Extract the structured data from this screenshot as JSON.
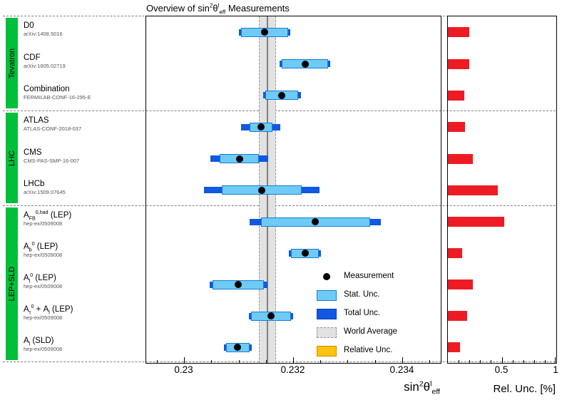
{
  "title": "Overview of sin^{2}θ^{l}_{eff} Measurements",
  "colors": {
    "group_green": "#00bf3a",
    "stat_fill": "#6ecbf5",
    "stat_border": "#1a7ad4",
    "total_fill": "#1158e2",
    "total_border": "#0b3fb0",
    "marker": "#000000",
    "rel_bar": "#ed1c24",
    "world_fill": "#e2e2e2",
    "world_edge": "#999999",
    "world_center": "#808080",
    "legend_rel_fill": "#ffc20e",
    "legend_rel_border": "#c79100",
    "ref_text": "#555555",
    "dash_line": "#808080"
  },
  "groups": [
    {
      "label": "Tevatron",
      "count": 3
    },
    {
      "label": "LHC",
      "count": 3
    },
    {
      "label": "LEP+SLD",
      "count": 5
    }
  ],
  "chart_data": {
    "type": "errorbar",
    "title": "Overview of sin2-theta-eff-l Measurements",
    "world_average": {
      "value": 0.23152,
      "uncertainty": 0.00016
    },
    "rows": [
      {
        "group": "Tevatron",
        "label": "D0",
        "ref": "arXiv:1408.5016",
        "value": 0.23147,
        "stat_unc": 0.00043,
        "total_unc": 0.00047,
        "rel_unc_pct": 0.2
      },
      {
        "group": "Tevatron",
        "label": "CDF",
        "ref": "arXiv:1605.02719",
        "value": 0.23221,
        "stat_unc": 0.00043,
        "total_unc": 0.00046,
        "rel_unc_pct": 0.2
      },
      {
        "group": "Tevatron",
        "label": "Combination",
        "ref": "FERMILAB-CONF-16-295-E",
        "value": 0.23179,
        "stat_unc": 0.0003,
        "total_unc": 0.00035,
        "rel_unc_pct": 0.15
      },
      {
        "group": "LHC",
        "label": "ATLAS",
        "ref": "ATLAS-CONF-2018-037",
        "value": 0.2314,
        "stat_unc": 0.00021,
        "total_unc": 0.00036,
        "rel_unc_pct": 0.16
      },
      {
        "group": "LHC",
        "label": "CMS",
        "ref": "CMS-PAS-SMP-16-007",
        "value": 0.23101,
        "stat_unc": 0.00036,
        "total_unc": 0.00053,
        "rel_unc_pct": 0.23
      },
      {
        "group": "LHC",
        "label": "LHCb",
        "ref": "arXiv:1509.07645",
        "value": 0.23142,
        "stat_unc": 0.00073,
        "total_unc": 0.00106,
        "rel_unc_pct": 0.46
      },
      {
        "group": "LEP+SLD",
        "label": "A_{FB}^{0,had} (LEP)",
        "ref": "hep-ex/0509008",
        "value": 0.2324,
        "stat_unc": 0.001,
        "total_unc": 0.0012,
        "rel_unc_pct": 0.52
      },
      {
        "group": "LEP+SLD",
        "label": "A_{b}^{0} (LEP)",
        "ref": "hep-ex/0509008",
        "value": 0.23221,
        "stat_unc": 0.00025,
        "total_unc": 0.00029,
        "rel_unc_pct": 0.13
      },
      {
        "group": "LEP+SLD",
        "label": "A_{l}^{0} (LEP)",
        "ref": "hep-ex/0509008",
        "value": 0.23099,
        "stat_unc": 0.00047,
        "total_unc": 0.00053,
        "rel_unc_pct": 0.23
      },
      {
        "group": "LEP+SLD",
        "label": "A_{τ}^{0} + A_{l} (LEP)",
        "ref": "hep-ex/0509008",
        "value": 0.23159,
        "stat_unc": 0.00037,
        "total_unc": 0.00041,
        "rel_unc_pct": 0.18
      },
      {
        "group": "LEP+SLD",
        "label": "A_{l} (SLD)",
        "ref": "hep-ex/0509008",
        "value": 0.23098,
        "stat_unc": 0.00022,
        "total_unc": 0.00026,
        "rel_unc_pct": 0.11
      }
    ],
    "main_axis": {
      "label": "sin^{2}θ^{l}_{eff}",
      "xlim": [
        0.2293,
        0.2347
      ],
      "ticks": [
        0.23,
        0.232,
        0.234
      ],
      "tick_labels": [
        "0.23",
        "0.232",
        "0.234"
      ],
      "minor_step": 0.0005
    },
    "rel_axis": {
      "label": "Rel. Unc. [%]",
      "xlim": [
        0,
        1
      ],
      "ticks": [
        0.5,
        1
      ],
      "tick_labels": [
        "0.5",
        "1"
      ],
      "minor_step": 0.1
    }
  },
  "legend": {
    "items": [
      {
        "swatch": "dot",
        "label": "Measurement"
      },
      {
        "swatch": "stat",
        "label": "Stat. Unc."
      },
      {
        "swatch": "total",
        "label": "Total Unc."
      },
      {
        "swatch": "world",
        "label": "World Average"
      },
      {
        "swatch": "rel",
        "label": "Relative Unc."
      }
    ]
  }
}
